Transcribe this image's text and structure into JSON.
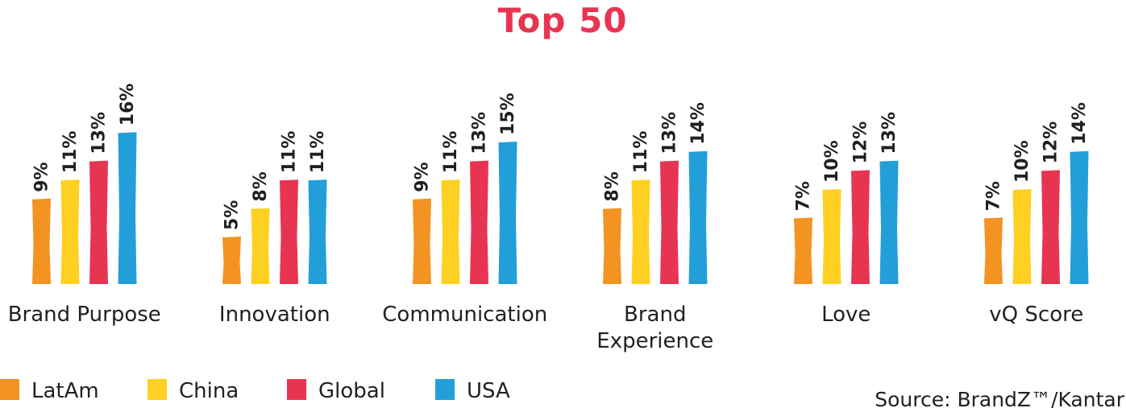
{
  "chart_data": {
    "type": "bar",
    "title": "Top 50",
    "categories": [
      "Brand Purpose",
      "Innovation",
      "Communication",
      "Brand Experience",
      "Love",
      "vQ Score"
    ],
    "category_lines": [
      [
        "Brand Purpose"
      ],
      [
        "Innovation"
      ],
      [
        "Communication"
      ],
      [
        "Brand",
        "Experience"
      ],
      [
        "Love"
      ],
      [
        "vQ Score"
      ]
    ],
    "series": [
      {
        "name": "LatAm",
        "values": [
          9,
          5,
          9,
          8,
          7,
          7
        ],
        "labels": [
          "9%",
          "5%",
          "9%",
          "8%",
          "7%",
          "7%"
        ],
        "color": "#f39322"
      },
      {
        "name": "China",
        "values": [
          11,
          8,
          11,
          11,
          10,
          10
        ],
        "labels": [
          "11%",
          "8%",
          "11%",
          "11%",
          "10%",
          "10%"
        ],
        "color": "#fdd021"
      },
      {
        "name": "Global",
        "values": [
          13,
          11,
          13,
          13,
          12,
          12
        ],
        "labels": [
          "13%",
          "11%",
          "13%",
          "13%",
          "12%",
          "12%"
        ],
        "color": "#e73551"
      },
      {
        "name": "USA",
        "values": [
          16,
          11,
          15,
          14,
          13,
          14
        ],
        "labels": [
          "16%",
          "11%",
          "15%",
          "14%",
          "13%",
          "14%"
        ],
        "color": "#229fd8"
      }
    ],
    "unit": "%",
    "ylim": [
      0,
      16
    ],
    "grid": false,
    "legend_position": "bottom-left",
    "title_color": "#e73551"
  },
  "source": "Source: BrandZ™/Kantar"
}
